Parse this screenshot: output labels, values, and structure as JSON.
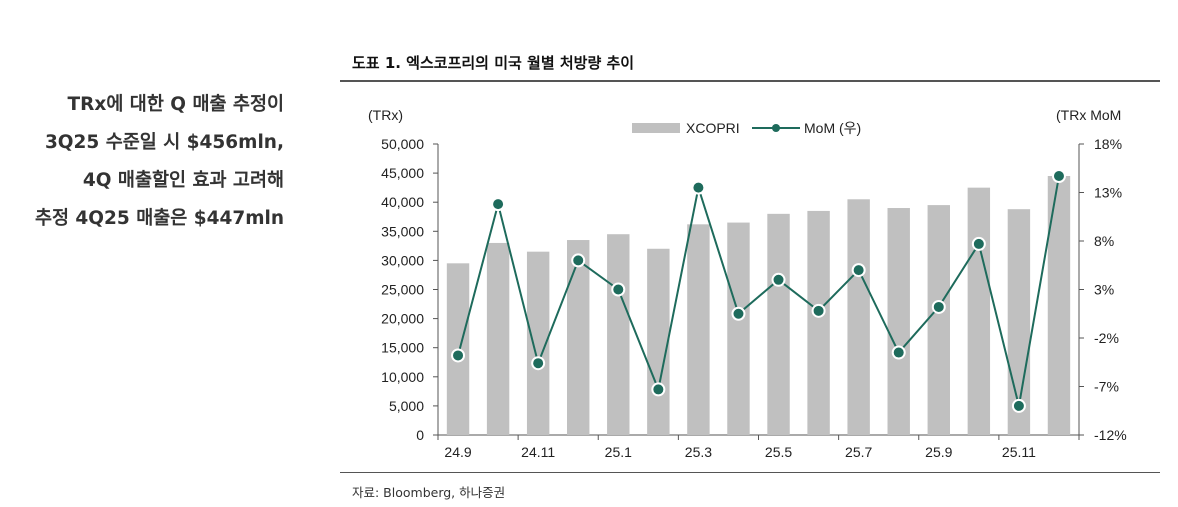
{
  "sidebar": {
    "lines": [
      "TRx에 대한 Q 매출 추정이",
      "3Q25 수준일 시 $456mln,",
      "4Q 매출할인 효과 고려해",
      "추정 4Q25 매출은 $447mln"
    ]
  },
  "figure": {
    "title": "도표 1. 엑스코프리의 미국 월별 처방량 추이",
    "source": "자료: Bloomberg, 하나증권"
  },
  "chart_data": {
    "type": "bar",
    "x": [
      "24.9",
      "24.10",
      "24.11",
      "24.12",
      "25.1",
      "25.2",
      "25.3",
      "25.4",
      "25.5",
      "25.6",
      "25.7",
      "25.8",
      "25.9",
      "25.10",
      "25.11",
      "25.12"
    ],
    "xtick_labels": [
      "24.9",
      "",
      "24.11",
      "",
      "25.1",
      "",
      "25.3",
      "",
      "25.5",
      "",
      "25.7",
      "",
      "25.9",
      "",
      "25.11",
      ""
    ],
    "series": [
      {
        "name": "XCOPRI",
        "type": "bar",
        "axis": "left",
        "color": "#c0c0c0",
        "values": [
          29500,
          33000,
          31500,
          33500,
          34500,
          32000,
          36200,
          36500,
          38000,
          38500,
          40500,
          39000,
          39500,
          42500,
          38800,
          44500
        ]
      },
      {
        "name": "MoM (우)",
        "type": "line",
        "axis": "right",
        "color": "#1e6b5c",
        "values": [
          -3.8,
          11.8,
          -4.6,
          6.0,
          3.0,
          -7.3,
          13.5,
          0.5,
          4.0,
          0.8,
          5.0,
          -3.5,
          1.2,
          7.7,
          -9.0,
          14.7
        ]
      }
    ],
    "ylabel_left": "(TRx)",
    "ylabel_right": "(TRx MoM",
    "ylim_left": [
      0,
      50000
    ],
    "yticks_left": [
      "0",
      "5,000",
      "10,000",
      "15,000",
      "20,000",
      "25,000",
      "30,000",
      "35,000",
      "40,000",
      "45,000",
      "50,000"
    ],
    "ylim_right": [
      -12,
      18
    ],
    "yticks_right": [
      "-12%",
      "-7%",
      "-2%",
      "3%",
      "8%",
      "13%",
      "18%"
    ],
    "legend": "top-center",
    "grid": false
  }
}
